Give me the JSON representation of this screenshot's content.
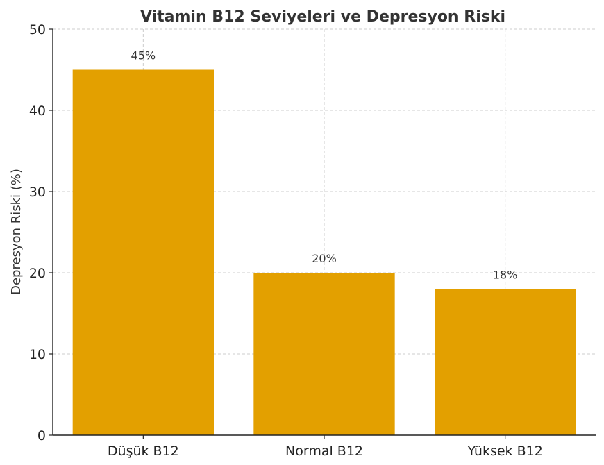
{
  "chart_data": {
    "type": "bar",
    "title": "Vitamin B12 Seviyeleri ve Depresyon Riski",
    "xlabel": "",
    "ylabel": "Depresyon Riski (%)",
    "categories": [
      "Düşük B12",
      "Normal B12",
      "Yüksek B12"
    ],
    "values": [
      45,
      20,
      18
    ],
    "data_labels": [
      "45%",
      "20%",
      "18%"
    ],
    "ylim": [
      0,
      50
    ],
    "yticks": [
      0,
      10,
      20,
      30,
      40,
      50
    ],
    "grid": true,
    "bar_color": "#e3a000"
  }
}
